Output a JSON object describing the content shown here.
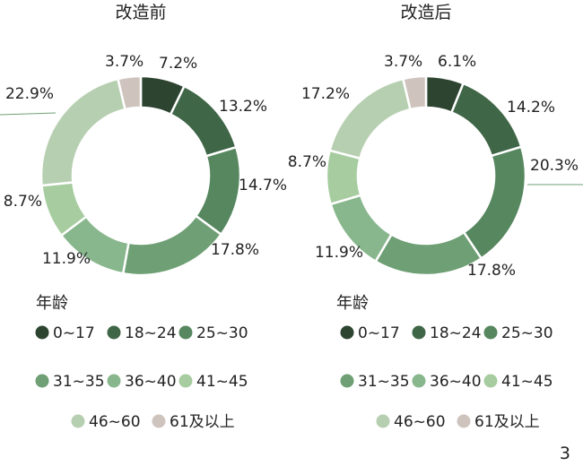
{
  "page_number": "3",
  "colors": {
    "0~17": "#2d4430",
    "18~24": "#3f6647",
    "25~30": "#56875f",
    "31~35": "#6f9f74",
    "36~40": "#88b78d",
    "41~45": "#a6cc9f",
    "46~60": "#b7cfb1",
    "61及以上": "#cfc4bd"
  },
  "chart_data": [
    {
      "type": "pie",
      "title": "改造前",
      "legend_title": "年龄",
      "legend_placement": "bottom",
      "categories": [
        "0~17",
        "18~24",
        "25~30",
        "31~35",
        "36~40",
        "41~45",
        "46~60",
        "61及以上"
      ],
      "values": [
        7.2,
        13.2,
        14.7,
        17.8,
        11.9,
        8.7,
        22.9,
        3.7
      ],
      "data_labels": [
        "7.2%",
        "13.2%",
        "14.7%",
        "17.8%",
        "11.9%",
        "8.7%",
        "22.9%",
        "3.7%"
      ]
    },
    {
      "type": "pie",
      "title": "改造后",
      "legend_title": "年龄",
      "legend_placement": "bottom",
      "categories": [
        "0~17",
        "18~24",
        "25~30",
        "31~35",
        "36~40",
        "41~45",
        "46~60",
        "61及以上"
      ],
      "values": [
        6.1,
        14.2,
        20.3,
        17.8,
        11.9,
        8.7,
        17.2,
        3.7
      ],
      "data_labels": [
        "6.1%",
        "14.2%",
        "20.3%",
        "17.8%",
        "11.9%",
        "8.7%",
        "17.2%",
        "3.7%"
      ]
    }
  ]
}
